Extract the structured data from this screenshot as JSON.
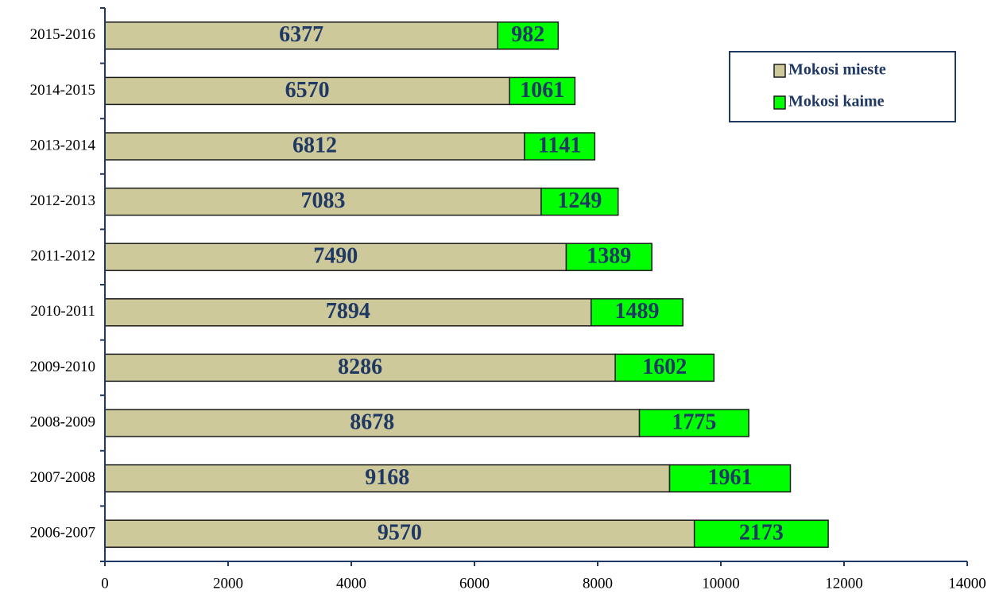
{
  "chart_data": {
    "type": "stacked_barh",
    "categories": [
      "2015-2016",
      "2014-2015",
      "2013-2014",
      "2012-2013",
      "2011-2012",
      "2010-2011",
      "2009-2010",
      "2008-2009",
      "2007-2008",
      "2006-2007"
    ],
    "series": [
      {
        "name": "Mokosi mieste",
        "color": "#cdc99b",
        "values": [
          6377,
          6570,
          6812,
          7083,
          7490,
          7894,
          8286,
          8678,
          9168,
          9570
        ]
      },
      {
        "name": "Mokosi kaime",
        "color": "#00ff00",
        "values": [
          982,
          1061,
          1141,
          1249,
          1389,
          1489,
          1602,
          1775,
          1961,
          2173
        ]
      }
    ],
    "xlim": [
      0,
      14000
    ],
    "xticks": [
      0,
      2000,
      4000,
      6000,
      8000,
      10000,
      12000,
      14000
    ],
    "legend": "upper right",
    "grid": false
  }
}
